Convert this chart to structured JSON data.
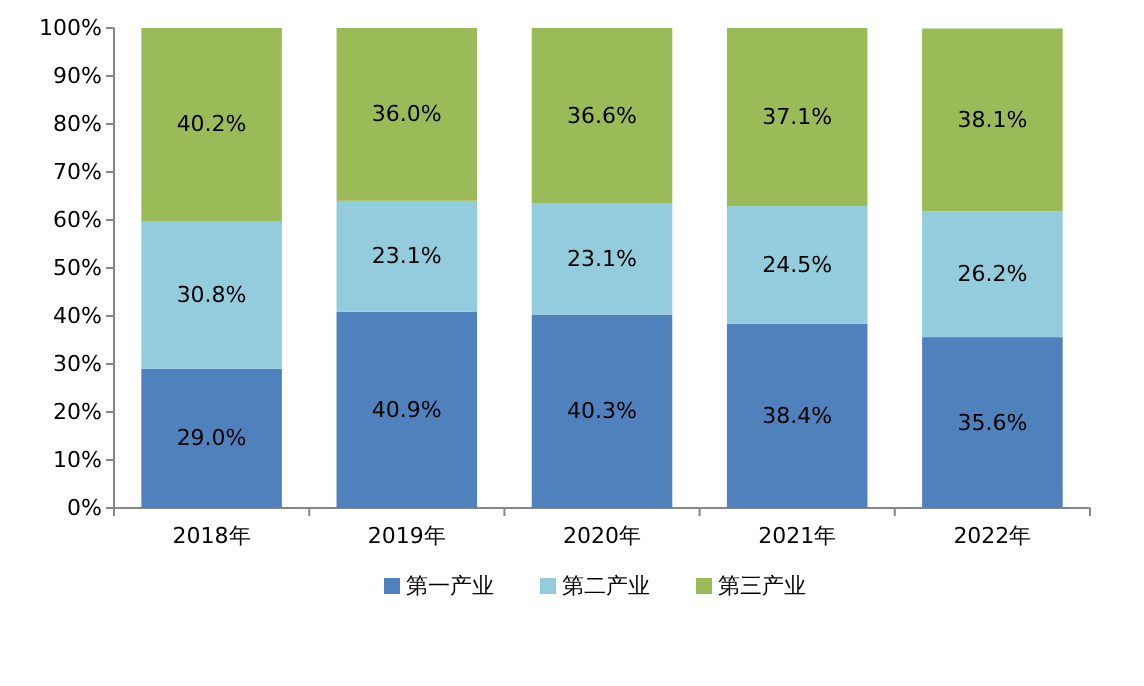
{
  "chart_data": {
    "type": "bar",
    "stacked": true,
    "categories": [
      "2018年",
      "2019年",
      "2020年",
      "2021年",
      "2022年"
    ],
    "series": [
      {
        "name": "第一产业",
        "color": "#4f81bd",
        "values": [
          29.0,
          40.9,
          40.3,
          38.4,
          35.6
        ],
        "value_labels": [
          "29.0%",
          "40.9%",
          "40.3%",
          "38.4%",
          "35.6%"
        ]
      },
      {
        "name": "第二产业",
        "color": "#93cddd",
        "values": [
          30.8,
          23.1,
          23.1,
          24.5,
          26.2
        ],
        "value_labels": [
          "30.8%",
          "23.1%",
          "23.1%",
          "24.5%",
          "26.2%"
        ]
      },
      {
        "name": "第三产业",
        "color": "#9bbb59",
        "values": [
          40.2,
          36.0,
          36.6,
          37.1,
          38.1
        ],
        "value_labels": [
          "40.2%",
          "36.0%",
          "36.6%",
          "37.1%",
          "38.1%"
        ]
      }
    ],
    "ylim": [
      0,
      100
    ],
    "yticks": [
      {
        "value": 0,
        "label": "0%"
      },
      {
        "value": 10,
        "label": "10%"
      },
      {
        "value": 20,
        "label": "20%"
      },
      {
        "value": 30,
        "label": "30%"
      },
      {
        "value": 40,
        "label": "40%"
      },
      {
        "value": 50,
        "label": "50%"
      },
      {
        "value": 60,
        "label": "60%"
      },
      {
        "value": 70,
        "label": "70%"
      },
      {
        "value": 80,
        "label": "80%"
      },
      {
        "value": 90,
        "label": "90%"
      },
      {
        "value": 100,
        "label": "100%"
      }
    ],
    "legend": "bottom"
  }
}
